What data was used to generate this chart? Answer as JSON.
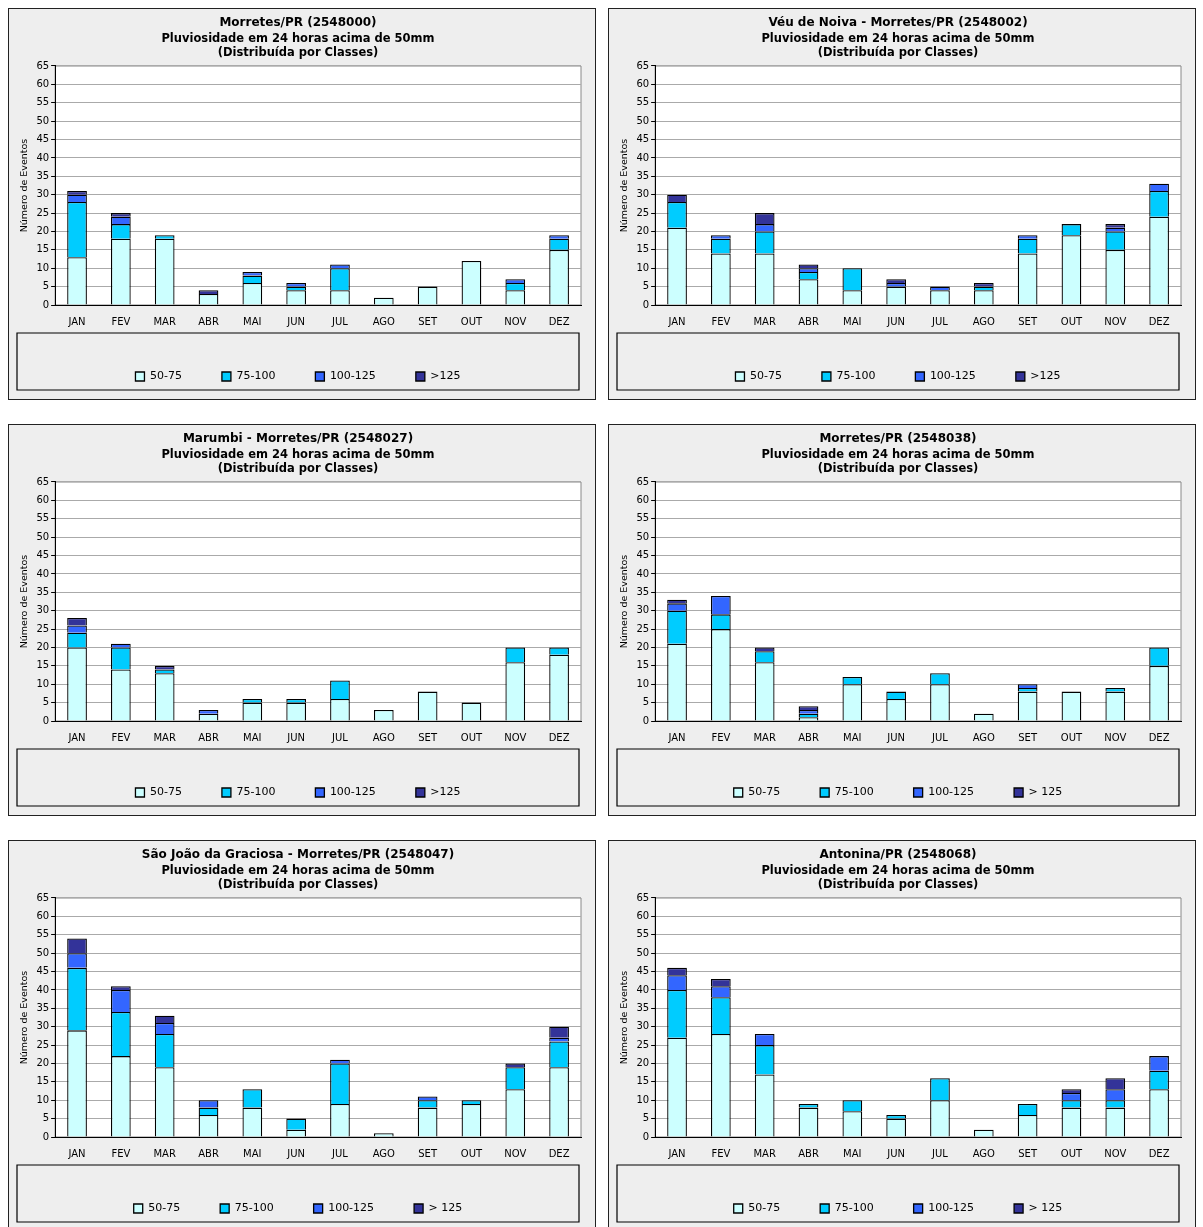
{
  "chart_data": [
    {
      "type": "bar",
      "title": "Morretes/PR (2548000)",
      "subtitle": "Pluviosidade em 24 horas acima de 50mm\n(Distribuída por Classes)",
      "ylabel": "Número de Eventos",
      "categories": [
        "JAN",
        "FEV",
        "MAR",
        "ABR",
        "MAI",
        "JUN",
        "JUL",
        "AGO",
        "SET",
        "OUT",
        "NOV",
        "DEZ"
      ],
      "stacked": true,
      "ylim": [
        0,
        65
      ],
      "yticks": [
        0,
        5,
        10,
        15,
        20,
        25,
        30,
        35,
        40,
        45,
        50,
        55,
        60,
        65
      ],
      "grid": "y",
      "legend": "bottom",
      "series": [
        {
          "name": "50-75",
          "color": "#ccffff",
          "values": [
            13,
            18,
            18,
            3,
            6,
            4,
            4,
            2,
            5,
            12,
            4,
            15
          ]
        },
        {
          "name": "75-100",
          "color": "#00ccff",
          "values": [
            15,
            4,
            1,
            0,
            2,
            1,
            6,
            0,
            0,
            0,
            2,
            3
          ]
        },
        {
          "name": "100-125",
          "color": "#3366ff",
          "values": [
            2,
            2,
            0,
            0,
            1,
            1,
            1,
            0,
            0,
            0,
            1,
            1
          ]
        },
        {
          "name": ">125",
          "color": "#333399",
          "values": [
            1,
            1,
            0,
            1,
            0,
            0,
            0,
            0,
            0,
            0,
            0,
            0
          ]
        }
      ]
    },
    {
      "type": "bar",
      "title": "Véu de Noiva - Morretes/PR (2548002)",
      "subtitle": "Pluviosidade em 24 horas acima de 50mm\n(Distribuída por Classes)",
      "ylabel": "Número de Eventos",
      "categories": [
        "JAN",
        "FEV",
        "MAR",
        "ABR",
        "MAI",
        "JUN",
        "JUL",
        "AGO",
        "SET",
        "OUT",
        "NOV",
        "DEZ"
      ],
      "stacked": true,
      "ylim": [
        0,
        65
      ],
      "yticks": [
        0,
        5,
        10,
        15,
        20,
        25,
        30,
        35,
        40,
        45,
        50,
        55,
        60,
        65
      ],
      "grid": "y",
      "legend": "bottom",
      "series": [
        {
          "name": "50-75",
          "color": "#ccffff",
          "values": [
            21,
            14,
            14,
            7,
            4,
            5,
            4,
            4,
            14,
            19,
            15,
            24
          ]
        },
        {
          "name": "75-100",
          "color": "#00ccff",
          "values": [
            7,
            4,
            6,
            2,
            6,
            0,
            0,
            1,
            4,
            3,
            5,
            7
          ]
        },
        {
          "name": "100-125",
          "color": "#3366ff",
          "values": [
            0,
            1,
            2,
            1,
            0,
            1,
            1,
            0,
            1,
            0,
            1,
            2
          ]
        },
        {
          "name": ">125",
          "color": "#333399",
          "values": [
            2,
            0,
            3,
            1,
            0,
            1,
            0,
            1,
            0,
            0,
            1,
            0
          ]
        }
      ]
    },
    {
      "type": "bar",
      "title": "Marumbi - Morretes/PR (2548027)",
      "subtitle": "Pluviosidade em 24 horas acima de 50mm\n(Distribuída por Classes)",
      "ylabel": "Número de Eventos",
      "categories": [
        "JAN",
        "FEV",
        "MAR",
        "ABR",
        "MAI",
        "JUN",
        "JUL",
        "AGO",
        "SET",
        "OUT",
        "NOV",
        "DEZ"
      ],
      "stacked": true,
      "ylim": [
        0,
        65
      ],
      "yticks": [
        0,
        5,
        10,
        15,
        20,
        25,
        30,
        35,
        40,
        45,
        50,
        55,
        60,
        65
      ],
      "grid": "y",
      "legend": "bottom",
      "series": [
        {
          "name": "50-75",
          "color": "#ccffff",
          "values": [
            20,
            14,
            13,
            2,
            5,
            5,
            6,
            3,
            8,
            5,
            16,
            18
          ]
        },
        {
          "name": "75-100",
          "color": "#00ccff",
          "values": [
            4,
            6,
            1,
            0,
            1,
            1,
            5,
            0,
            0,
            0,
            4,
            2
          ]
        },
        {
          "name": "100-125",
          "color": "#3366ff",
          "values": [
            2,
            1,
            0,
            1,
            0,
            0,
            0,
            0,
            0,
            0,
            0,
            0
          ]
        },
        {
          "name": ">125",
          "color": "#333399",
          "values": [
            2,
            0,
            1,
            0,
            0,
            0,
            0,
            0,
            0,
            0,
            0,
            0
          ]
        }
      ]
    },
    {
      "type": "bar",
      "title": "Morretes/PR (2548038)",
      "subtitle": "Pluviosidade em 24 horas acima de 50mm\n(Distribuída por Classes)",
      "ylabel": "Número de Eventos",
      "categories": [
        "JAN",
        "FEV",
        "MAR",
        "ABR",
        "MAI",
        "JUN",
        "JUL",
        "AGO",
        "SET",
        "OUT",
        "NOV",
        "DEZ"
      ],
      "stacked": true,
      "ylim": [
        0,
        65
      ],
      "yticks": [
        0,
        5,
        10,
        15,
        20,
        25,
        30,
        35,
        40,
        45,
        50,
        55,
        60,
        65
      ],
      "grid": "y",
      "legend": "bottom",
      "series": [
        {
          "name": "50-75",
          "color": "#ccffff",
          "values": [
            21,
            25,
            16,
            1,
            10,
            6,
            10,
            2,
            8,
            8,
            8,
            15
          ]
        },
        {
          "name": "75-100",
          "color": "#00ccff",
          "values": [
            9,
            4,
            3,
            1,
            2,
            2,
            3,
            0,
            1,
            0,
            1,
            5
          ]
        },
        {
          "name": "100-125",
          "color": "#3366ff",
          "values": [
            2,
            5,
            0,
            1,
            0,
            0,
            0,
            0,
            1,
            0,
            0,
            0
          ]
        },
        {
          "name": "> 125",
          "color": "#333399",
          "values": [
            1,
            0,
            1,
            1,
            0,
            0,
            0,
            0,
            0,
            0,
            0,
            0
          ]
        }
      ]
    },
    {
      "type": "bar",
      "title": "São João da Graciosa - Morretes/PR (2548047)",
      "subtitle": "Pluviosidade em 24 horas acima de 50mm\n(Distribuída por Classes)",
      "ylabel": "Número de Eventos",
      "categories": [
        "JAN",
        "FEV",
        "MAR",
        "ABR",
        "MAI",
        "JUN",
        "JUL",
        "AGO",
        "SET",
        "OUT",
        "NOV",
        "DEZ"
      ],
      "stacked": true,
      "ylim": [
        0,
        65
      ],
      "yticks": [
        0,
        5,
        10,
        15,
        20,
        25,
        30,
        35,
        40,
        45,
        50,
        55,
        60,
        65
      ],
      "grid": "y",
      "legend": "bottom",
      "series": [
        {
          "name": "50-75",
          "color": "#ccffff",
          "values": [
            29,
            22,
            19,
            6,
            8,
            2,
            9,
            1,
            8,
            9,
            13,
            19
          ]
        },
        {
          "name": "75-100",
          "color": "#00ccff",
          "values": [
            17,
            12,
            9,
            2,
            5,
            3,
            11,
            0,
            2,
            1,
            6,
            7
          ]
        },
        {
          "name": "100-125",
          "color": "#3366ff",
          "values": [
            4,
            6,
            3,
            2,
            0,
            0,
            1,
            0,
            1,
            0,
            0,
            1
          ]
        },
        {
          "name": "> 125",
          "color": "#333399",
          "values": [
            4,
            1,
            2,
            0,
            0,
            0,
            0,
            0,
            0,
            0,
            1,
            3
          ]
        }
      ]
    },
    {
      "type": "bar",
      "title": "Antonina/PR (2548068)",
      "subtitle": "Pluviosidade em 24 horas acima de 50mm\n(Distribuída por Classes)",
      "ylabel": "Número de Eventos",
      "categories": [
        "JAN",
        "FEV",
        "MAR",
        "ABR",
        "MAI",
        "JUN",
        "JUL",
        "AGO",
        "SET",
        "OUT",
        "NOV",
        "DEZ"
      ],
      "stacked": true,
      "ylim": [
        0,
        65
      ],
      "yticks": [
        0,
        5,
        10,
        15,
        20,
        25,
        30,
        35,
        40,
        45,
        50,
        55,
        60,
        65
      ],
      "grid": "y",
      "legend": "bottom",
      "series": [
        {
          "name": "50-75",
          "color": "#ccffff",
          "values": [
            27,
            28,
            17,
            8,
            7,
            5,
            10,
            2,
            6,
            8,
            8,
            13
          ]
        },
        {
          "name": "75-100",
          "color": "#00ccff",
          "values": [
            13,
            10,
            8,
            1,
            3,
            1,
            6,
            0,
            3,
            2,
            2,
            5
          ]
        },
        {
          "name": "100-125",
          "color": "#3366ff",
          "values": [
            4,
            3,
            3,
            0,
            0,
            0,
            0,
            0,
            0,
            2,
            3,
            4
          ]
        },
        {
          "name": "> 125",
          "color": "#333399",
          "values": [
            2,
            2,
            0,
            0,
            0,
            0,
            0,
            0,
            0,
            1,
            3,
            0
          ]
        }
      ]
    }
  ]
}
